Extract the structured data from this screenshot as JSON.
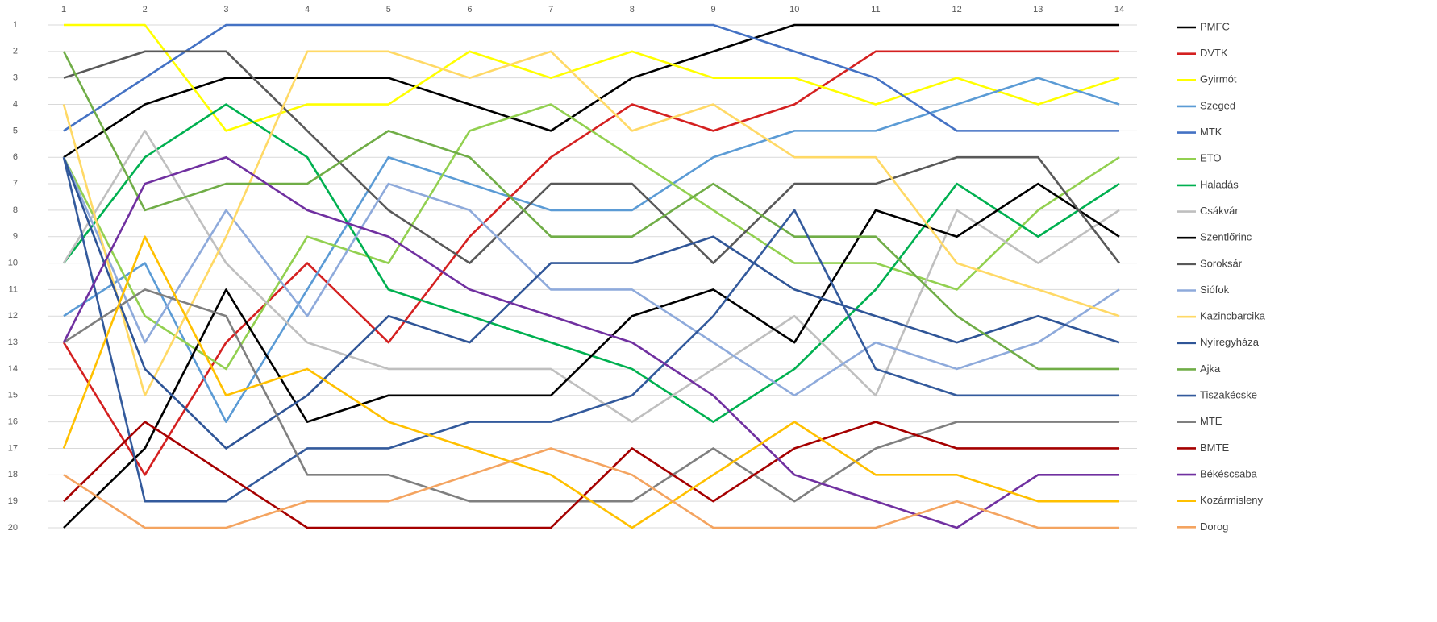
{
  "chart_data": {
    "type": "line",
    "y_reversed": true,
    "grid": true,
    "legend": "right",
    "x": [
      1,
      2,
      3,
      4,
      5,
      6,
      7,
      8,
      9,
      10,
      11,
      12,
      13,
      14
    ],
    "xlim": [
      1,
      14
    ],
    "xticks": [
      1,
      2,
      3,
      4,
      5,
      6,
      7,
      8,
      9,
      10,
      11,
      12,
      13,
      14
    ],
    "ylim": [
      1,
      20
    ],
    "yticks": [
      1,
      2,
      3,
      4,
      5,
      6,
      7,
      8,
      9,
      10,
      11,
      12,
      13,
      14,
      15,
      16,
      17,
      18,
      19,
      20
    ],
    "series": [
      {
        "name": "PMFC",
        "color": "#000000",
        "values": [
          6,
          4,
          3,
          3,
          3,
          4,
          5,
          3,
          2,
          1,
          1,
          1,
          1,
          1
        ]
      },
      {
        "name": "DVTK",
        "color": "#d42020",
        "values": [
          13,
          18,
          13,
          10,
          13,
          9,
          6,
          4,
          5,
          4,
          2,
          2,
          2,
          2
        ]
      },
      {
        "name": "Gyirmót",
        "color": "#ffff00",
        "values": [
          1,
          1,
          5,
          4,
          4,
          2,
          3,
          2,
          3,
          3,
          4,
          3,
          4,
          3
        ]
      },
      {
        "name": "Szeged",
        "color": "#5b9bd5",
        "values": [
          12,
          10,
          16,
          11,
          6,
          7,
          8,
          8,
          6,
          5,
          5,
          4,
          3,
          4
        ]
      },
      {
        "name": "MTK",
        "color": "#4472c4",
        "values": [
          5,
          3,
          1,
          1,
          1,
          1,
          1,
          1,
          1,
          2,
          3,
          5,
          5,
          5
        ]
      },
      {
        "name": "ETO",
        "color": "#92d050",
        "values": [
          6,
          12,
          14,
          9,
          10,
          5,
          4,
          6,
          8,
          10,
          10,
          11,
          8,
          6
        ]
      },
      {
        "name": "Haladás",
        "color": "#00b050",
        "values": [
          10,
          6,
          4,
          6,
          11,
          12,
          13,
          14,
          16,
          14,
          11,
          7,
          9,
          7
        ]
      },
      {
        "name": "Csákvár",
        "color": "#bfbfbf",
        "values": [
          10,
          5,
          10,
          13,
          14,
          14,
          14,
          16,
          14,
          12,
          15,
          8,
          10,
          8
        ]
      },
      {
        "name": "Szentlőrinc",
        "color": "#000000",
        "values": [
          20,
          17,
          11,
          16,
          15,
          15,
          15,
          12,
          11,
          13,
          8,
          9,
          7,
          9
        ]
      },
      {
        "name": "Soroksár",
        "color": "#595959",
        "values": [
          3,
          2,
          2,
          5,
          8,
          10,
          7,
          7,
          10,
          7,
          7,
          6,
          6,
          10
        ]
      },
      {
        "name": "Siófok",
        "color": "#8eaadb",
        "values": [
          6,
          13,
          8,
          12,
          7,
          8,
          11,
          11,
          13,
          15,
          13,
          14,
          13,
          11
        ]
      },
      {
        "name": "Kazincbarcika",
        "color": "#ffd966",
        "values": [
          4,
          15,
          9,
          2,
          2,
          3,
          2,
          5,
          4,
          6,
          6,
          10,
          11,
          12
        ]
      },
      {
        "name": "Nyíregyháza",
        "color": "#2f5597",
        "values": [
          6,
          14,
          17,
          15,
          12,
          13,
          10,
          10,
          9,
          11,
          12,
          13,
          12,
          13
        ]
      },
      {
        "name": "Ajka",
        "color": "#70ad47",
        "values": [
          2,
          8,
          7,
          7,
          5,
          6,
          9,
          9,
          7,
          9,
          9,
          12,
          14,
          14
        ]
      },
      {
        "name": "Tiszakécske",
        "color": "#335a9c",
        "values": [
          6,
          19,
          19,
          17,
          17,
          16,
          16,
          15,
          12,
          8,
          14,
          15,
          15,
          15
        ]
      },
      {
        "name": "MTE",
        "color": "#7f7f7f",
        "values": [
          13,
          11,
          12,
          18,
          18,
          19,
          19,
          19,
          17,
          19,
          17,
          16,
          16,
          16
        ]
      },
      {
        "name": "BMTE",
        "color": "#a50000",
        "values": [
          19,
          16,
          18,
          20,
          20,
          20,
          20,
          17,
          19,
          17,
          16,
          17,
          17,
          17
        ]
      },
      {
        "name": "Békéscsaba",
        "color": "#7030a0",
        "values": [
          13,
          7,
          6,
          8,
          9,
          11,
          12,
          13,
          15,
          18,
          19,
          20,
          18,
          18
        ]
      },
      {
        "name": "Kozármisleny",
        "color": "#ffc000",
        "values": [
          17,
          9,
          15,
          14,
          16,
          17,
          18,
          20,
          18,
          16,
          18,
          18,
          19,
          19
        ]
      },
      {
        "name": "Dorog",
        "color": "#f4a460",
        "values": [
          18,
          20,
          20,
          19,
          19,
          18,
          17,
          18,
          20,
          20,
          20,
          19,
          20,
          20
        ]
      }
    ]
  }
}
